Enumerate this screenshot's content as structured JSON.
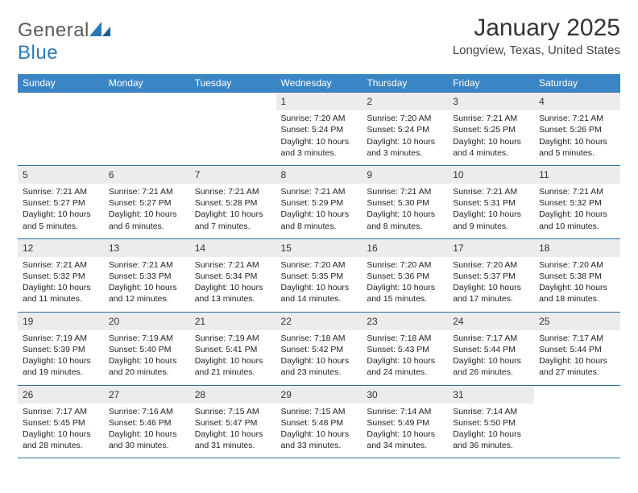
{
  "brand": {
    "word1": "General",
    "word2": "Blue"
  },
  "colors": {
    "header_bg": "#3a86c5",
    "row_border": "#2f6ea8",
    "daynum_bg": "#ececec",
    "text": "#333333",
    "logo_gray": "#5a5a5a",
    "logo_blue": "#2a7ab9"
  },
  "typography": {
    "title_size": 30,
    "location_size": 15,
    "th_size": 12,
    "cell_size": 10.5
  },
  "title": "January 2025",
  "location": "Longview, Texas, United States",
  "weekdays": [
    "Sunday",
    "Monday",
    "Tuesday",
    "Wednesday",
    "Thursday",
    "Friday",
    "Saturday"
  ],
  "weeks": [
    [
      {
        "n": "",
        "l1": "",
        "l2": "",
        "l3": "",
        "l4": ""
      },
      {
        "n": "",
        "l1": "",
        "l2": "",
        "l3": "",
        "l4": ""
      },
      {
        "n": "",
        "l1": "",
        "l2": "",
        "l3": "",
        "l4": ""
      },
      {
        "n": "1",
        "l1": "Sunrise: 7:20 AM",
        "l2": "Sunset: 5:24 PM",
        "l3": "Daylight: 10 hours",
        "l4": "and 3 minutes."
      },
      {
        "n": "2",
        "l1": "Sunrise: 7:20 AM",
        "l2": "Sunset: 5:24 PM",
        "l3": "Daylight: 10 hours",
        "l4": "and 3 minutes."
      },
      {
        "n": "3",
        "l1": "Sunrise: 7:21 AM",
        "l2": "Sunset: 5:25 PM",
        "l3": "Daylight: 10 hours",
        "l4": "and 4 minutes."
      },
      {
        "n": "4",
        "l1": "Sunrise: 7:21 AM",
        "l2": "Sunset: 5:26 PM",
        "l3": "Daylight: 10 hours",
        "l4": "and 5 minutes."
      }
    ],
    [
      {
        "n": "5",
        "l1": "Sunrise: 7:21 AM",
        "l2": "Sunset: 5:27 PM",
        "l3": "Daylight: 10 hours",
        "l4": "and 5 minutes."
      },
      {
        "n": "6",
        "l1": "Sunrise: 7:21 AM",
        "l2": "Sunset: 5:27 PM",
        "l3": "Daylight: 10 hours",
        "l4": "and 6 minutes."
      },
      {
        "n": "7",
        "l1": "Sunrise: 7:21 AM",
        "l2": "Sunset: 5:28 PM",
        "l3": "Daylight: 10 hours",
        "l4": "and 7 minutes."
      },
      {
        "n": "8",
        "l1": "Sunrise: 7:21 AM",
        "l2": "Sunset: 5:29 PM",
        "l3": "Daylight: 10 hours",
        "l4": "and 8 minutes."
      },
      {
        "n": "9",
        "l1": "Sunrise: 7:21 AM",
        "l2": "Sunset: 5:30 PM",
        "l3": "Daylight: 10 hours",
        "l4": "and 8 minutes."
      },
      {
        "n": "10",
        "l1": "Sunrise: 7:21 AM",
        "l2": "Sunset: 5:31 PM",
        "l3": "Daylight: 10 hours",
        "l4": "and 9 minutes."
      },
      {
        "n": "11",
        "l1": "Sunrise: 7:21 AM",
        "l2": "Sunset: 5:32 PM",
        "l3": "Daylight: 10 hours",
        "l4": "and 10 minutes."
      }
    ],
    [
      {
        "n": "12",
        "l1": "Sunrise: 7:21 AM",
        "l2": "Sunset: 5:32 PM",
        "l3": "Daylight: 10 hours",
        "l4": "and 11 minutes."
      },
      {
        "n": "13",
        "l1": "Sunrise: 7:21 AM",
        "l2": "Sunset: 5:33 PM",
        "l3": "Daylight: 10 hours",
        "l4": "and 12 minutes."
      },
      {
        "n": "14",
        "l1": "Sunrise: 7:21 AM",
        "l2": "Sunset: 5:34 PM",
        "l3": "Daylight: 10 hours",
        "l4": "and 13 minutes."
      },
      {
        "n": "15",
        "l1": "Sunrise: 7:20 AM",
        "l2": "Sunset: 5:35 PM",
        "l3": "Daylight: 10 hours",
        "l4": "and 14 minutes."
      },
      {
        "n": "16",
        "l1": "Sunrise: 7:20 AM",
        "l2": "Sunset: 5:36 PM",
        "l3": "Daylight: 10 hours",
        "l4": "and 15 minutes."
      },
      {
        "n": "17",
        "l1": "Sunrise: 7:20 AM",
        "l2": "Sunset: 5:37 PM",
        "l3": "Daylight: 10 hours",
        "l4": "and 17 minutes."
      },
      {
        "n": "18",
        "l1": "Sunrise: 7:20 AM",
        "l2": "Sunset: 5:38 PM",
        "l3": "Daylight: 10 hours",
        "l4": "and 18 minutes."
      }
    ],
    [
      {
        "n": "19",
        "l1": "Sunrise: 7:19 AM",
        "l2": "Sunset: 5:39 PM",
        "l3": "Daylight: 10 hours",
        "l4": "and 19 minutes."
      },
      {
        "n": "20",
        "l1": "Sunrise: 7:19 AM",
        "l2": "Sunset: 5:40 PM",
        "l3": "Daylight: 10 hours",
        "l4": "and 20 minutes."
      },
      {
        "n": "21",
        "l1": "Sunrise: 7:19 AM",
        "l2": "Sunset: 5:41 PM",
        "l3": "Daylight: 10 hours",
        "l4": "and 21 minutes."
      },
      {
        "n": "22",
        "l1": "Sunrise: 7:18 AM",
        "l2": "Sunset: 5:42 PM",
        "l3": "Daylight: 10 hours",
        "l4": "and 23 minutes."
      },
      {
        "n": "23",
        "l1": "Sunrise: 7:18 AM",
        "l2": "Sunset: 5:43 PM",
        "l3": "Daylight: 10 hours",
        "l4": "and 24 minutes."
      },
      {
        "n": "24",
        "l1": "Sunrise: 7:17 AM",
        "l2": "Sunset: 5:44 PM",
        "l3": "Daylight: 10 hours",
        "l4": "and 26 minutes."
      },
      {
        "n": "25",
        "l1": "Sunrise: 7:17 AM",
        "l2": "Sunset: 5:44 PM",
        "l3": "Daylight: 10 hours",
        "l4": "and 27 minutes."
      }
    ],
    [
      {
        "n": "26",
        "l1": "Sunrise: 7:17 AM",
        "l2": "Sunset: 5:45 PM",
        "l3": "Daylight: 10 hours",
        "l4": "and 28 minutes."
      },
      {
        "n": "27",
        "l1": "Sunrise: 7:16 AM",
        "l2": "Sunset: 5:46 PM",
        "l3": "Daylight: 10 hours",
        "l4": "and 30 minutes."
      },
      {
        "n": "28",
        "l1": "Sunrise: 7:15 AM",
        "l2": "Sunset: 5:47 PM",
        "l3": "Daylight: 10 hours",
        "l4": "and 31 minutes."
      },
      {
        "n": "29",
        "l1": "Sunrise: 7:15 AM",
        "l2": "Sunset: 5:48 PM",
        "l3": "Daylight: 10 hours",
        "l4": "and 33 minutes."
      },
      {
        "n": "30",
        "l1": "Sunrise: 7:14 AM",
        "l2": "Sunset: 5:49 PM",
        "l3": "Daylight: 10 hours",
        "l4": "and 34 minutes."
      },
      {
        "n": "31",
        "l1": "Sunrise: 7:14 AM",
        "l2": "Sunset: 5:50 PM",
        "l3": "Daylight: 10 hours",
        "l4": "and 36 minutes."
      },
      {
        "n": "",
        "l1": "",
        "l2": "",
        "l3": "",
        "l4": ""
      }
    ]
  ]
}
